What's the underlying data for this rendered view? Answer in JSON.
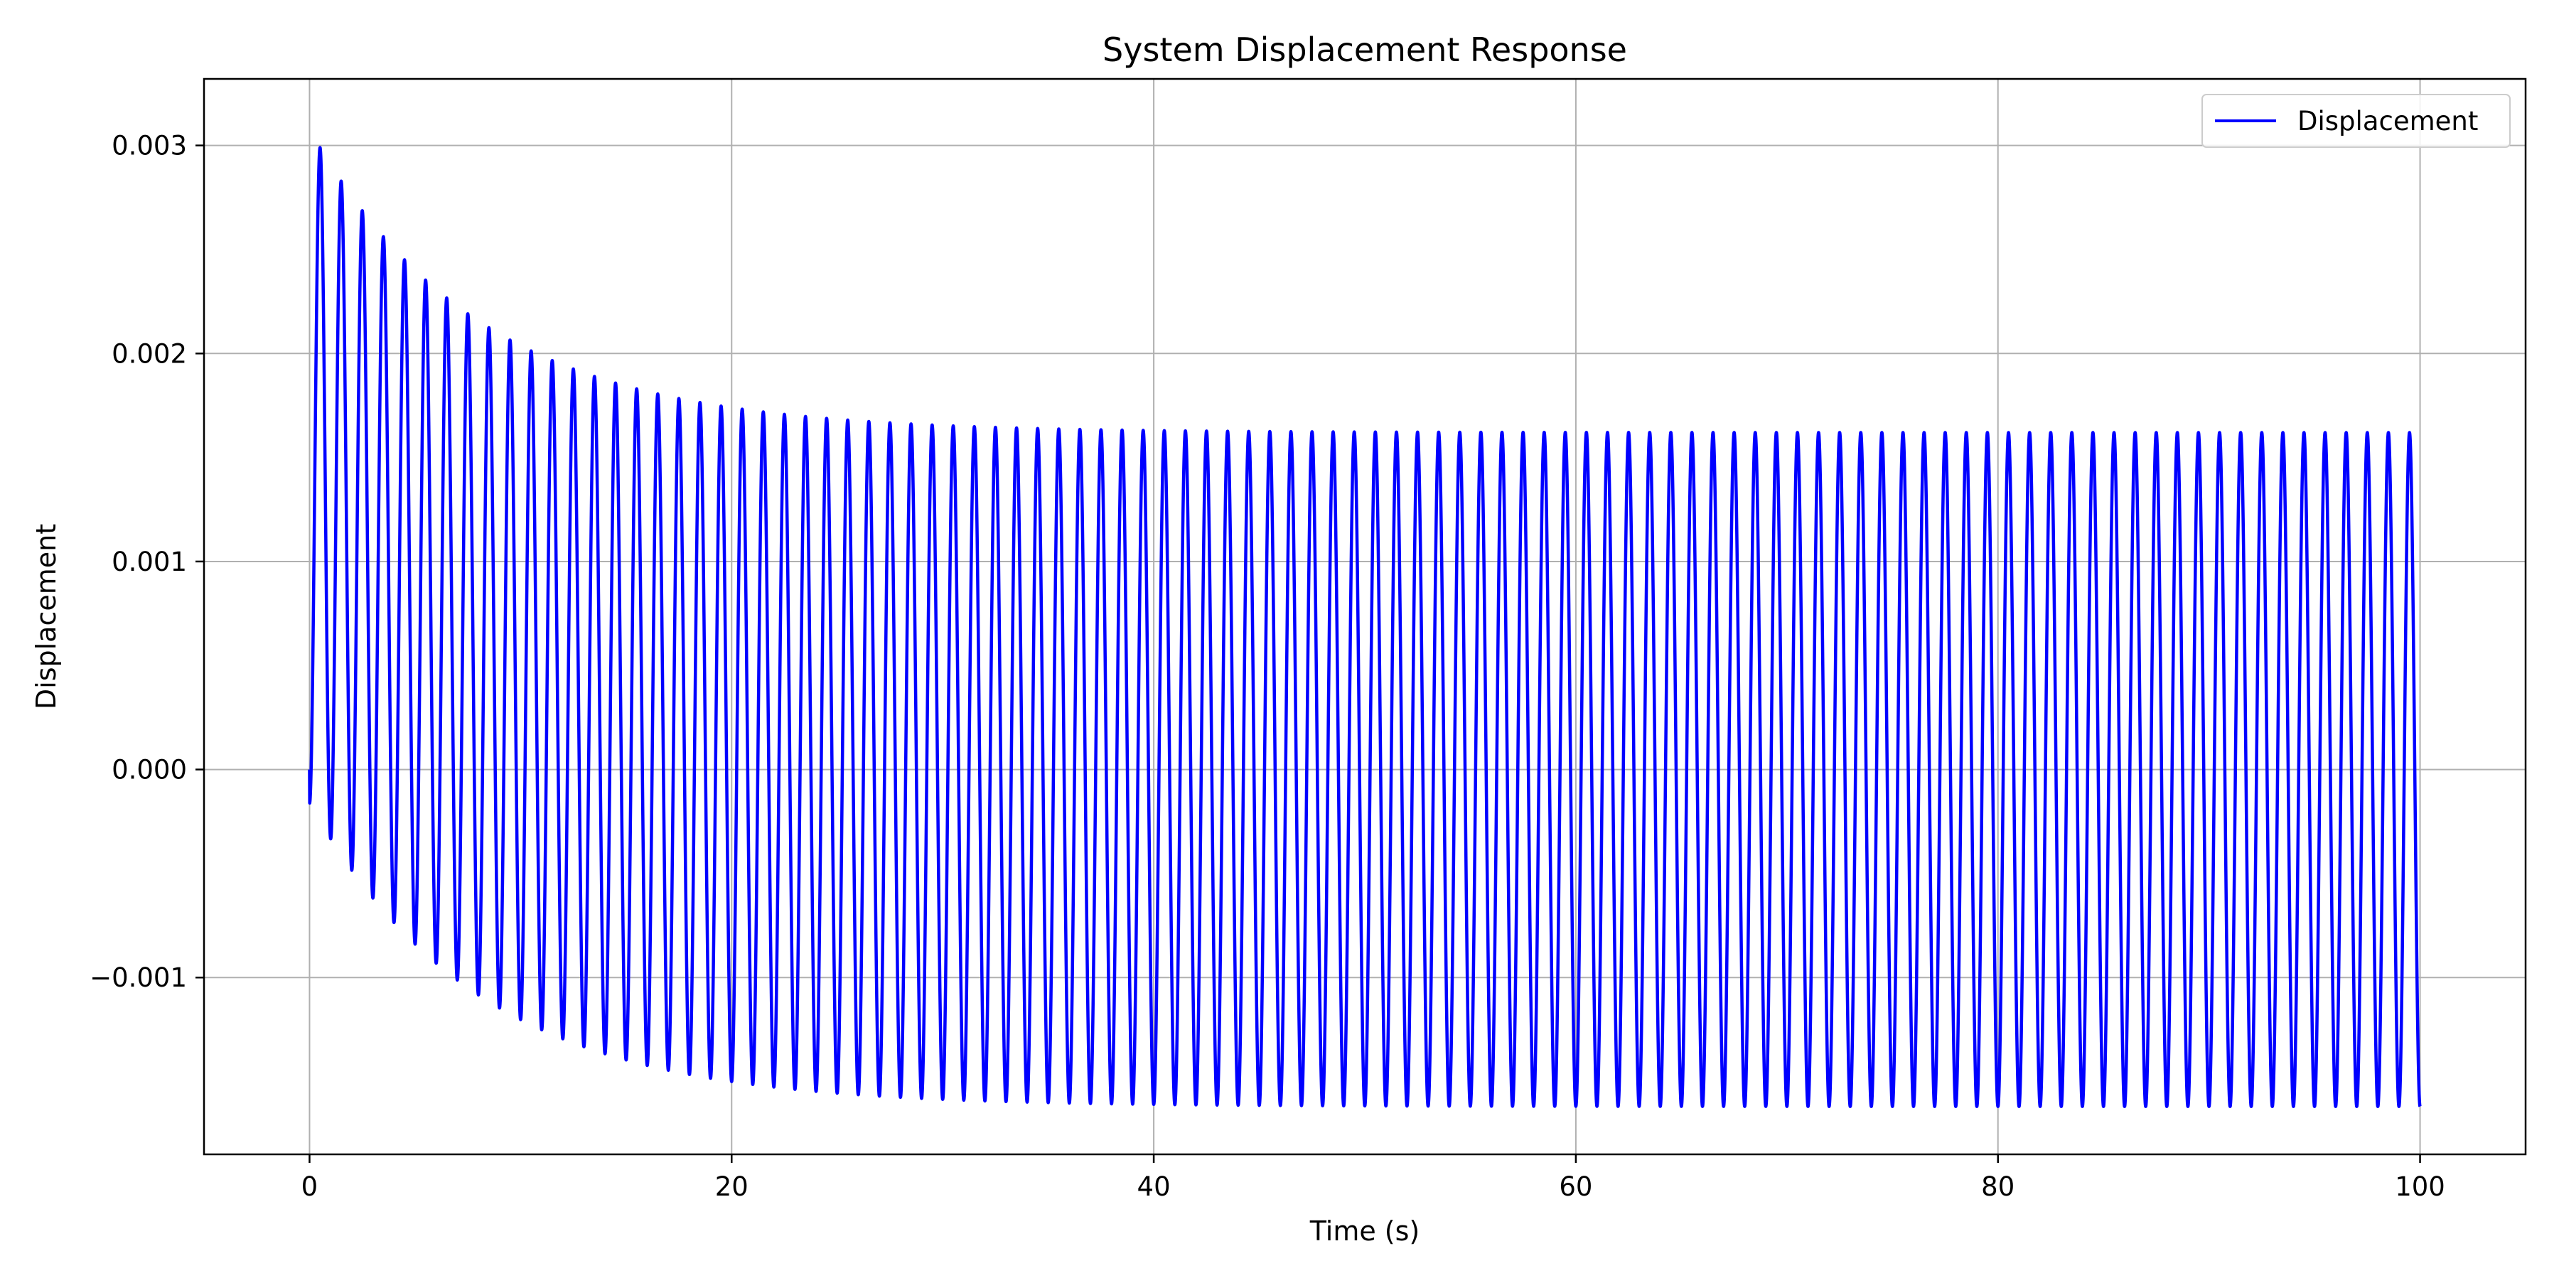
{
  "chart_data": {
    "type": "line",
    "title": "System Displacement Response",
    "xlabel": "Time (s)",
    "ylabel": "Displacement",
    "xlim": [
      -5,
      105
    ],
    "ylim": [
      -0.00185,
      0.00332
    ],
    "x_ticks": [
      0,
      20,
      40,
      60,
      80,
      100
    ],
    "x_tick_labels": [
      "0",
      "20",
      "40",
      "60",
      "80",
      "100"
    ],
    "y_ticks": [
      -0.001,
      0.0,
      0.001,
      0.002,
      0.003
    ],
    "y_tick_labels": [
      "−0.001",
      "0.000",
      "0.001",
      "0.002",
      "0.003"
    ],
    "grid": true,
    "legend_position": "top-right",
    "series": [
      {
        "name": "Displacement",
        "color": "#0000ff",
        "model": {
          "function": "damped driven oscillation",
          "frequency_hz": 1.0,
          "steady_center": 0.0,
          "steady_amplitude": 0.00162,
          "transient_offset": 0.00146,
          "transient_decay_time_s": 8.0,
          "t_start": 0,
          "t_end": 100
        },
        "peaks": [
          {
            "t": 0.5,
            "y": 0.00308
          },
          {
            "t": 1.5,
            "y": 0.00287
          },
          {
            "t": 2.5,
            "y": 0.0027
          },
          {
            "t": 3.5,
            "y": 0.00254
          },
          {
            "t": 4.5,
            "y": 0.00241
          },
          {
            "t": 5.5,
            "y": 0.0023
          },
          {
            "t": 6.5,
            "y": 0.0022
          },
          {
            "t": 7.5,
            "y": 0.00212
          },
          {
            "t": 8.5,
            "y": 0.00205
          },
          {
            "t": 9.5,
            "y": 0.00198
          },
          {
            "t": 10.5,
            "y": 0.00193
          },
          {
            "t": 11.5,
            "y": 0.00188
          },
          {
            "t": 12.5,
            "y": 0.00185
          },
          {
            "t": 13.5,
            "y": 0.00181
          },
          {
            "t": 14.5,
            "y": 0.00178
          },
          {
            "t": 15.5,
            "y": 0.00175
          },
          {
            "t": 16.5,
            "y": 0.00173
          },
          {
            "t": 17.5,
            "y": 0.00171
          },
          {
            "t": 18.5,
            "y": 0.0017
          },
          {
            "t": 19.5,
            "y": 0.00169
          },
          {
            "t": 20.5,
            "y": 0.00168
          },
          {
            "t": 25.5,
            "y": 0.00164
          },
          {
            "t": 30.5,
            "y": 0.00162
          },
          {
            "t": 99.5,
            "y": 0.00162
          }
        ],
        "troughs": [
          {
            "t": 1.0,
            "y": -0.00024
          },
          {
            "t": 2.0,
            "y": -0.00042
          },
          {
            "t": 3.0,
            "y": -0.00059
          },
          {
            "t": 4.0,
            "y": -0.00072
          },
          {
            "t": 5.0,
            "y": -0.00085
          },
          {
            "t": 6.0,
            "y": -0.00094
          },
          {
            "t": 7.0,
            "y": -0.00104
          },
          {
            "t": 8.0,
            "y": -0.00111
          },
          {
            "t": 9.0,
            "y": -0.00117
          },
          {
            "t": 10.0,
            "y": -0.00123
          },
          {
            "t": 11.0,
            "y": -0.00128
          },
          {
            "t": 12.0,
            "y": -0.00132
          },
          {
            "t": 13.0,
            "y": -0.00136
          },
          {
            "t": 14.0,
            "y": -0.00139
          },
          {
            "t": 15.0,
            "y": -0.00141
          },
          {
            "t": 16.0,
            "y": -0.00144
          },
          {
            "t": 17.0,
            "y": -0.00146
          },
          {
            "t": 18.0,
            "y": -0.00148
          },
          {
            "t": 19.0,
            "y": -0.0015
          },
          {
            "t": 20.0,
            "y": -0.00151
          },
          {
            "t": 25.0,
            "y": -0.00156
          },
          {
            "t": 30.0,
            "y": -0.00159
          },
          {
            "t": 40.0,
            "y": -0.00161
          },
          {
            "t": 100.0,
            "y": -0.00162
          }
        ],
        "end_value": {
          "t": 100,
          "y": -0.0016
        }
      }
    ]
  }
}
